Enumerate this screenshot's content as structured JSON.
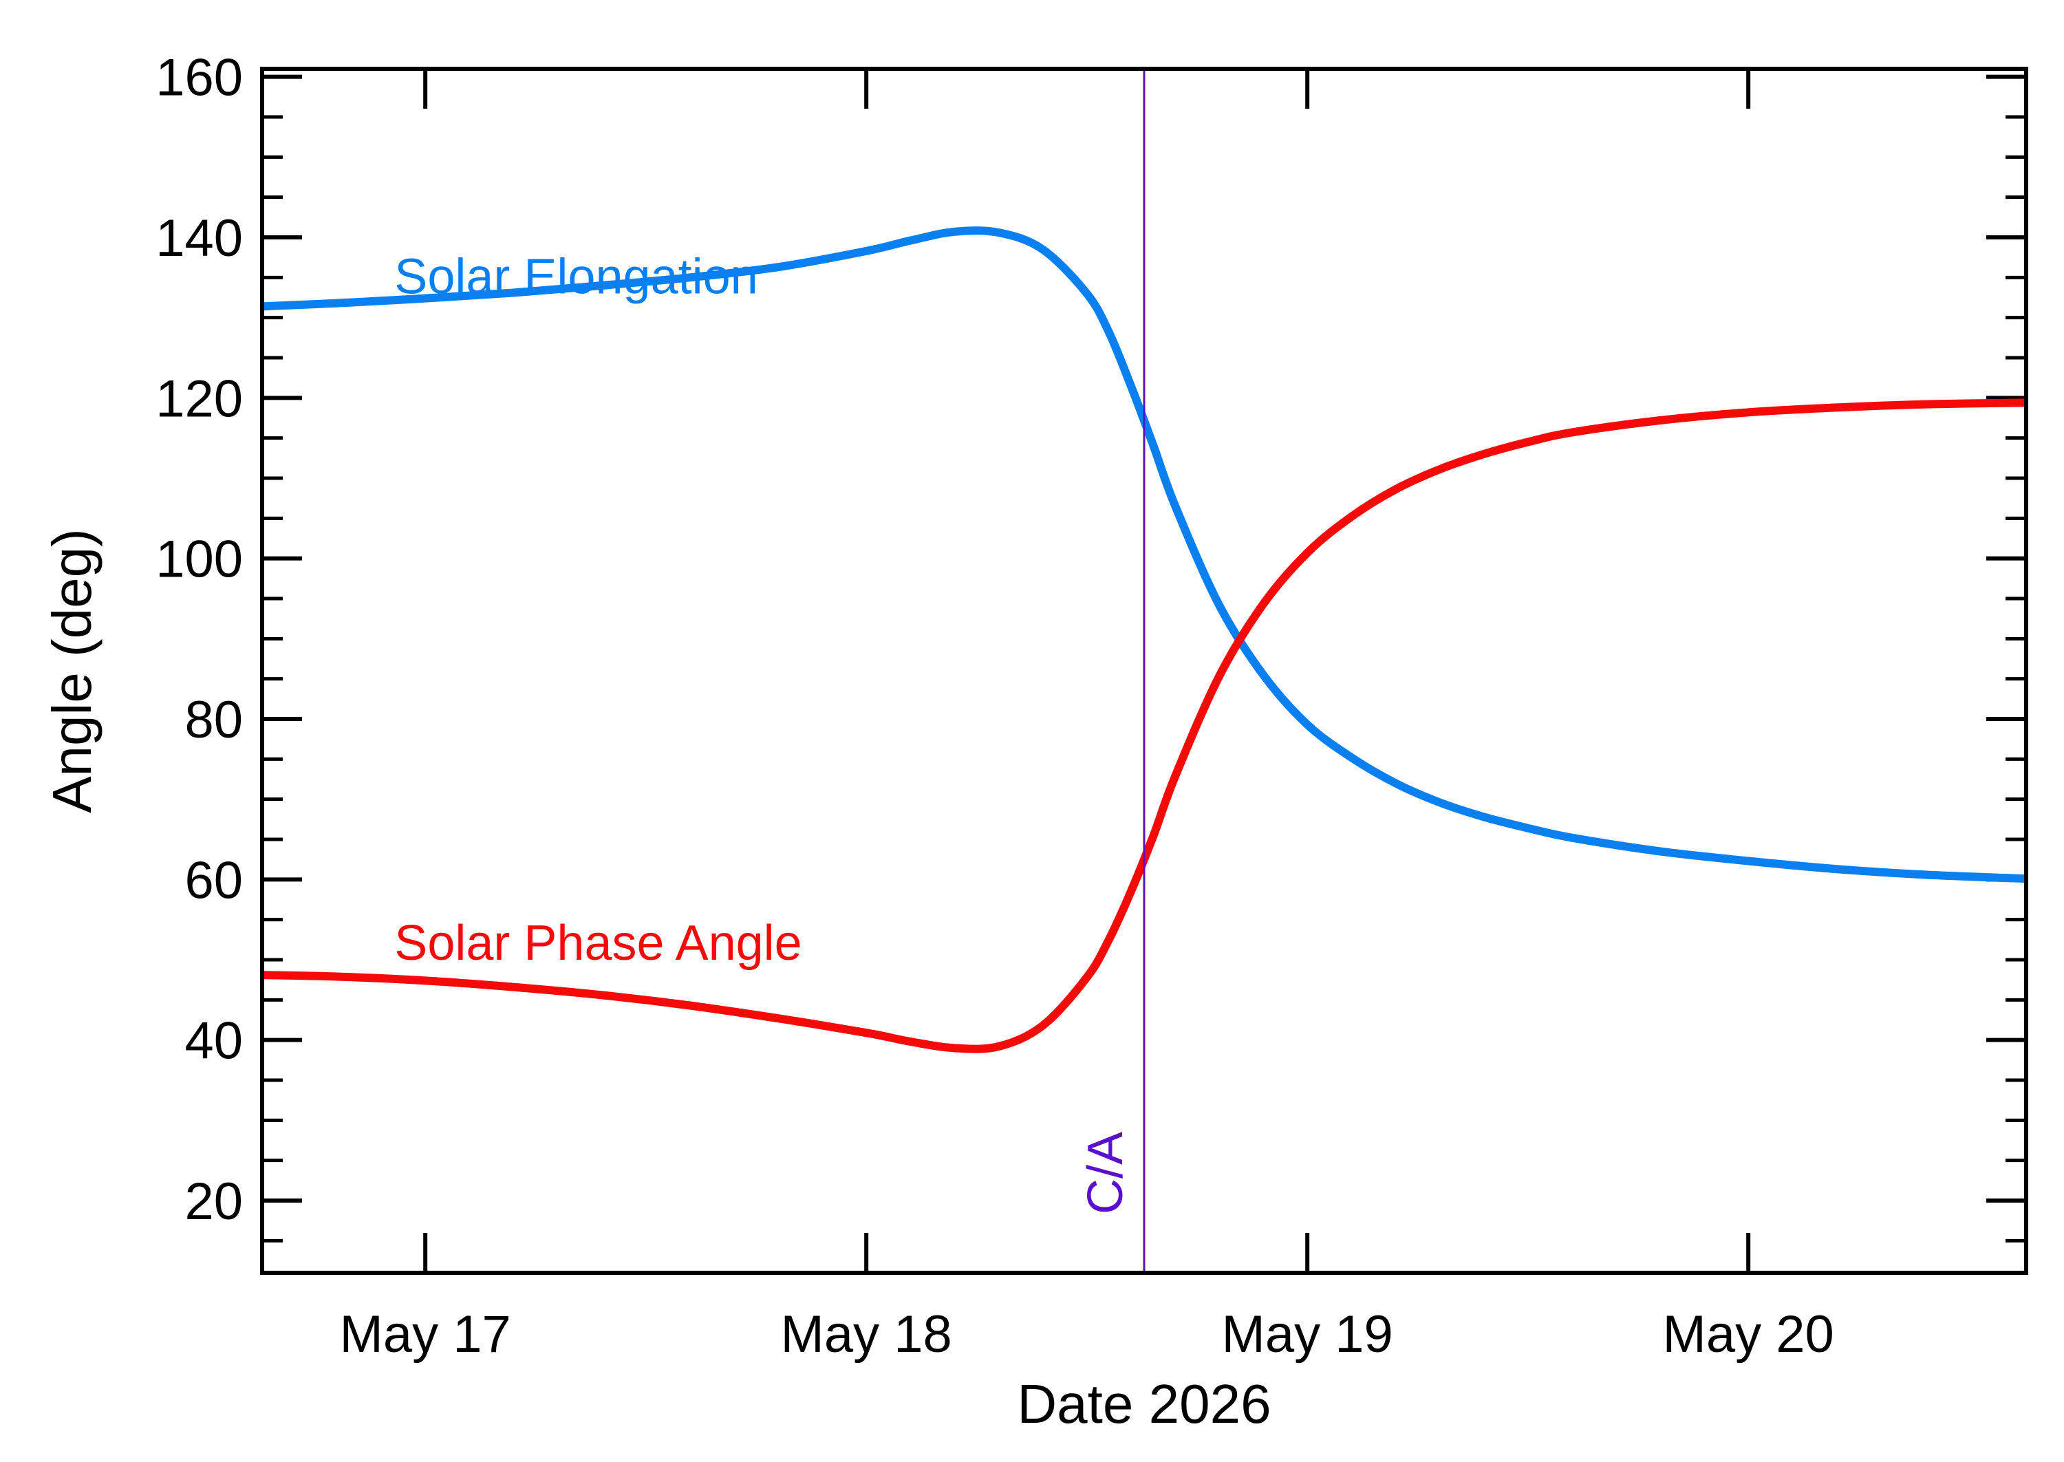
{
  "chart_data": {
    "type": "line",
    "title": "",
    "xlabel": "Date 2026",
    "ylabel": "Angle (deg)",
    "x_unit": "days (2026 May, fractional day-of-month)",
    "xlim": [
      16.63,
      20.63
    ],
    "ylim": [
      11,
      161
    ],
    "x_ticks": [
      {
        "value": 17,
        "label": "May 17"
      },
      {
        "value": 18,
        "label": "May 18"
      },
      {
        "value": 19,
        "label": "May 19"
      },
      {
        "value": 20,
        "label": "May 20"
      }
    ],
    "x_minor_ticks": [],
    "y_ticks": [
      {
        "value": 20,
        "label": "20"
      },
      {
        "value": 40,
        "label": "40"
      },
      {
        "value": 60,
        "label": "60"
      },
      {
        "value": 80,
        "label": "80"
      },
      {
        "value": 100,
        "label": "100"
      },
      {
        "value": 120,
        "label": "120"
      },
      {
        "value": 140,
        "label": "140"
      },
      {
        "value": 160,
        "label": "160"
      }
    ],
    "y_minor_step": 5,
    "grid": false,
    "legend": "inline labels",
    "series": [
      {
        "name": "Solar Elongation",
        "color": "#0a7ff0",
        "label_at": [
          16.93,
          133
        ],
        "x": [
          16.63,
          16.8,
          17.0,
          17.2,
          17.4,
          17.6,
          17.8,
          18.0,
          18.1,
          18.2,
          18.3,
          18.4,
          18.5,
          18.55,
          18.6,
          18.65,
          18.7,
          18.8,
          18.9,
          19.0,
          19.1,
          19.2,
          19.3,
          19.4,
          19.5,
          19.6,
          19.8,
          20.0,
          20.2,
          20.4,
          20.63
        ],
        "values": [
          131.4,
          131.8,
          132.4,
          133.1,
          134.0,
          135.0,
          136.3,
          138.3,
          139.6,
          140.7,
          140.6,
          138.5,
          133.0,
          128.2,
          121.5,
          114.2,
          106.6,
          94.2,
          85.5,
          79.3,
          75.2,
          72.0,
          69.6,
          67.8,
          66.4,
          65.2,
          63.5,
          62.3,
          61.3,
          60.6,
          60.1
        ]
      },
      {
        "name": "Solar Phase Angle",
        "color": "#f50a0a",
        "label_at": [
          16.93,
          50
        ],
        "x": [
          16.63,
          16.8,
          17.0,
          17.2,
          17.4,
          17.6,
          17.8,
          18.0,
          18.1,
          18.2,
          18.3,
          18.4,
          18.5,
          18.55,
          18.6,
          18.65,
          18.7,
          18.8,
          18.9,
          19.0,
          19.1,
          19.2,
          19.3,
          19.4,
          19.5,
          19.6,
          19.8,
          20.0,
          20.2,
          20.4,
          20.63
        ],
        "values": [
          48.1,
          47.9,
          47.4,
          46.6,
          45.6,
          44.3,
          42.7,
          40.9,
          39.8,
          39.0,
          39.2,
          41.8,
          47.8,
          52.5,
          58.5,
          65.3,
          72.8,
          85.3,
          94.3,
          100.7,
          105.2,
          108.6,
          111.1,
          113.0,
          114.5,
          115.7,
          117.2,
          118.2,
          118.8,
          119.2,
          119.4
        ]
      }
    ],
    "annotations": [
      {
        "text": "C/A",
        "x": 18.63,
        "color": "#5a0fd0",
        "type": "vertical-line"
      }
    ]
  }
}
